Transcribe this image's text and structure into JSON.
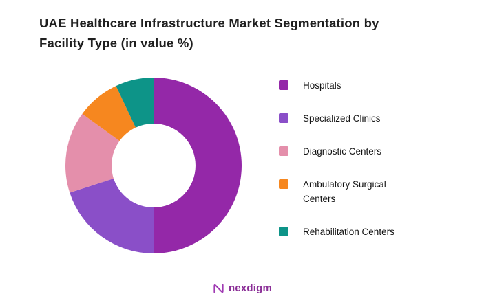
{
  "page": {
    "title": "UAE Healthcare Infrastructure Market Segmentation by Facility Type (in value %)"
  },
  "chart_data": {
    "type": "pie",
    "subtype": "donut",
    "title": "UAE Healthcare Infrastructure Market Segmentation by Facility Type (in value %)",
    "categories": [
      "Hospitals",
      "Specialized Clinics",
      "Diagnostic Centers",
      "Ambulatory Surgical Centers",
      "Rehabilitation Centers"
    ],
    "values": [
      50,
      20,
      15,
      8,
      7
    ],
    "colors": [
      "#9428a8",
      "#8a4fc8",
      "#e48fab",
      "#f6871f",
      "#0d9488"
    ],
    "start_angle": "12 o'clock",
    "direction": "clockwise",
    "inner_radius_ratio": 0.48,
    "legend_position": "right",
    "data_labels": "none"
  },
  "footer": {
    "brand": "nexdigm",
    "brand_color": "#8b2f97"
  }
}
